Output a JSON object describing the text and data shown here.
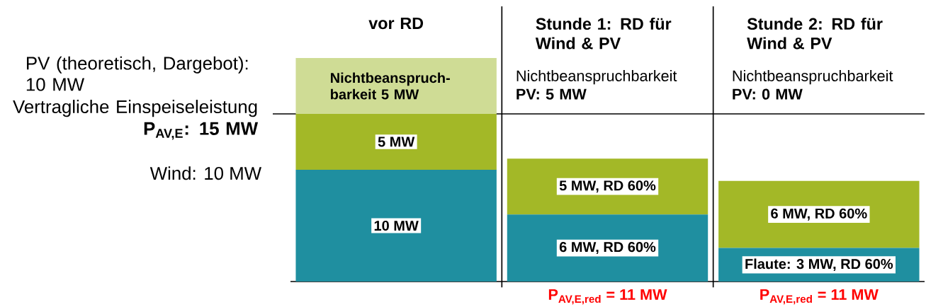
{
  "chart_data": {
    "type": "bar",
    "stacked": true,
    "tick_labels": "x",
    "categories": [
      "vor RD",
      "Stunde 1: RD für Wind & PV",
      "Stunde 2: RD für Wind & PV"
    ],
    "series": [
      {
        "color": "#1f8fa0",
        "values": [
          10,
          6,
          3
        ],
        "value_labels": [
          "10 MW",
          "6 MW, RD 60%",
          "Flaute: 3 MW, RD 60%"
        ]
      },
      {
        "color": "#a3b827",
        "values": [
          5,
          5,
          6
        ],
        "value_labels": [
          "5 MW",
          "5 MW, RD 60%",
          "6 MW, RD 60%"
        ]
      },
      {
        "color": "#cfdc95",
        "values": [
          5,
          null,
          null
        ],
        "value_labels": [
          "Nichtbeanspruch-barkeit 5 MW",
          null,
          null
        ]
      }
    ],
    "ref_lines": [
      {
        "axis": "y",
        "value": 15,
        "label": "Vertragliche Einspeiseleistung **P$_{AV,E}$: 15 MW**",
        "color": "#000000"
      }
    ],
    "totals": [
      null,
      "P$_{AV,E,red}$ = 11 MW",
      "P$_{AV,E,red}$ = 11 MW"
    ],
    "annotations": [
      "PV (theoretisch, Dargebot): 10 MW",
      "Wind: 10 MW",
      "Nichtbeanspruchbarkeit **PV: 5 MW**",
      "Nichtbeanspruchbarkeit **PV: 0 MW**"
    ]
  }
}
